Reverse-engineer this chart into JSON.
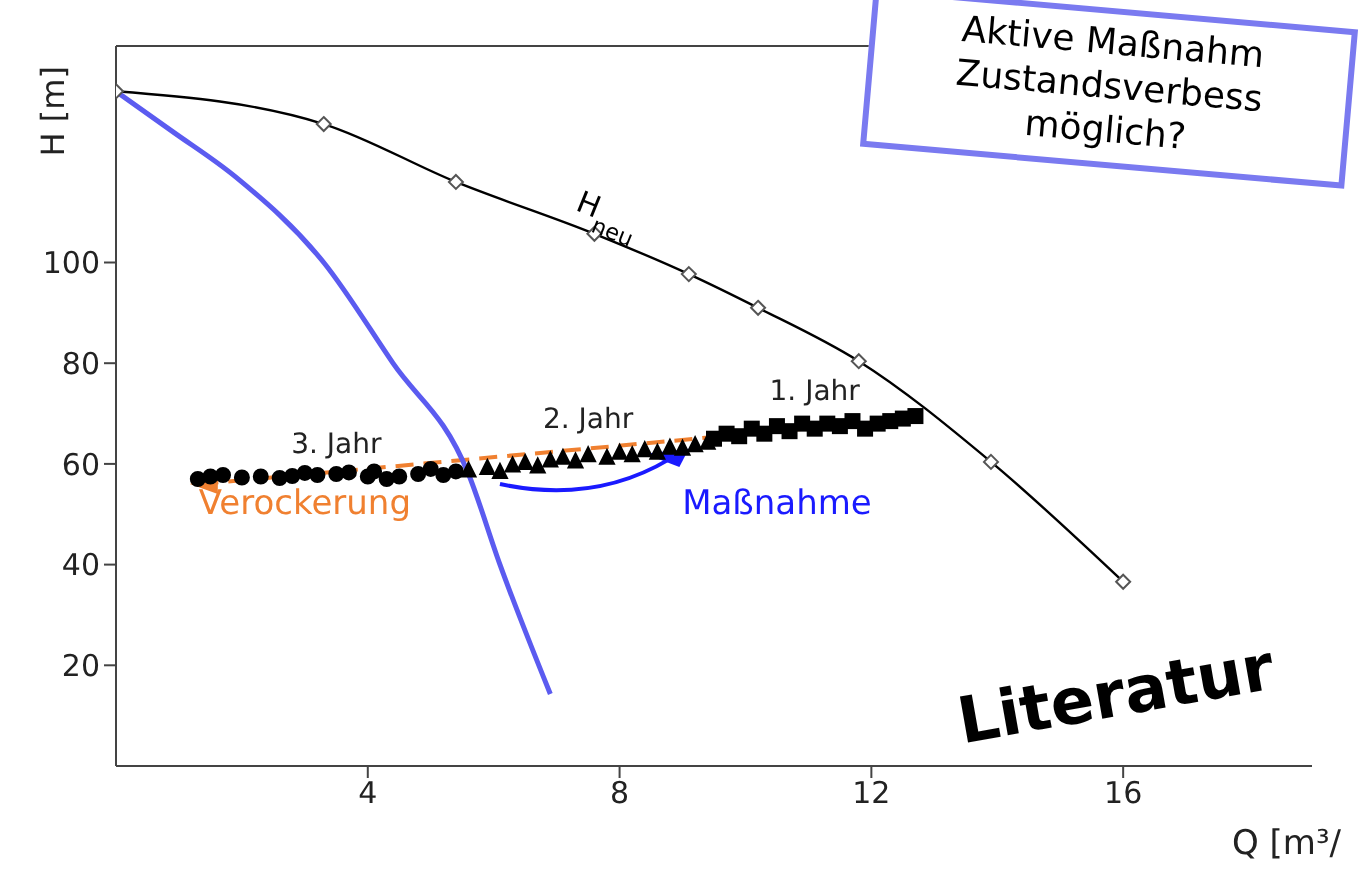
{
  "chart_data": {
    "type": "line",
    "xlabel": "Q [m³/",
    "ylabel": "H [m]",
    "xlim": [
      0,
      19
    ],
    "ylim": [
      0,
      143
    ],
    "xticks": [
      4,
      8,
      12,
      16
    ],
    "yticks": [
      20,
      40,
      60,
      80,
      100
    ],
    "series": [
      {
        "name": "H$_{neu}$",
        "color": "#000000",
        "marker": "diamond",
        "line_style": "solid",
        "x": [
          0,
          3.3,
          5.4,
          7.6,
          9.1,
          10.2,
          11.8,
          13.9,
          16
        ],
        "values": [
          134,
          127.5,
          116,
          105.7,
          97.7,
          91,
          80.4,
          60.4,
          36.6
        ]
      },
      {
        "color": "#5b5bf0",
        "marker": "none",
        "line_style": "solid",
        "x": [
          0,
          0.9,
          1.9,
          3.3,
          4.4,
          5.6,
          6.1,
          6.9
        ],
        "values": [
          134,
          126,
          117,
          100,
          80,
          58,
          40,
          14.3
        ]
      },
      {
        "name": "3. Jahr",
        "type": "scatter",
        "color": "#000000",
        "marker": "circle",
        "x": [
          1.3,
          1.5,
          1.7,
          2.0,
          2.3,
          2.6,
          2.8,
          3.0,
          3.2,
          3.5,
          3.7,
          4.0,
          4.1,
          4.3,
          4.5,
          4.8,
          5.0,
          5.2,
          5.4
        ],
        "values": [
          57,
          57.5,
          57.8,
          57.3,
          57.5,
          57.2,
          57.6,
          58.2,
          57.8,
          58,
          58.3,
          57.5,
          58.5,
          57,
          57.5,
          58,
          59,
          57.8,
          58.5
        ]
      },
      {
        "name": "2. Jahr",
        "type": "scatter",
        "color": "#000000",
        "marker": "triangle",
        "x": [
          5.6,
          5.9,
          6.1,
          6.3,
          6.5,
          6.7,
          6.9,
          7.1,
          7.3,
          7.5,
          7.8,
          8.0,
          8.2,
          8.4,
          8.6,
          8.8,
          9.0,
          9.2,
          9.4
        ],
        "values": [
          58.5,
          59,
          58.2,
          59.5,
          60,
          59.3,
          60.5,
          61,
          60.3,
          61.5,
          61,
          62,
          61.5,
          62.5,
          62,
          63,
          62.8,
          63.5,
          64
        ]
      },
      {
        "name": "1. Jahr",
        "type": "scatter",
        "color": "#000000",
        "marker": "square",
        "x": [
          9.5,
          9.7,
          9.9,
          10.1,
          10.3,
          10.5,
          10.7,
          10.9,
          11.1,
          11.3,
          11.5,
          11.7,
          11.9,
          12.1,
          12.3,
          12.5,
          12.7
        ],
        "values": [
          65,
          66,
          65.5,
          67,
          66,
          67.5,
          66.5,
          68,
          67,
          68,
          67.5,
          68.5,
          67,
          68,
          68.5,
          69,
          69.5
        ]
      }
    ],
    "annotations": [
      "Verockerung",
      {
        "text": "Maßnahme",
        "x": 9.2,
        "y": 63.5
      },
      "Aktive Maßnahm\nZustandsverbess\nmöglich?",
      "Literatur"
    ]
  }
}
